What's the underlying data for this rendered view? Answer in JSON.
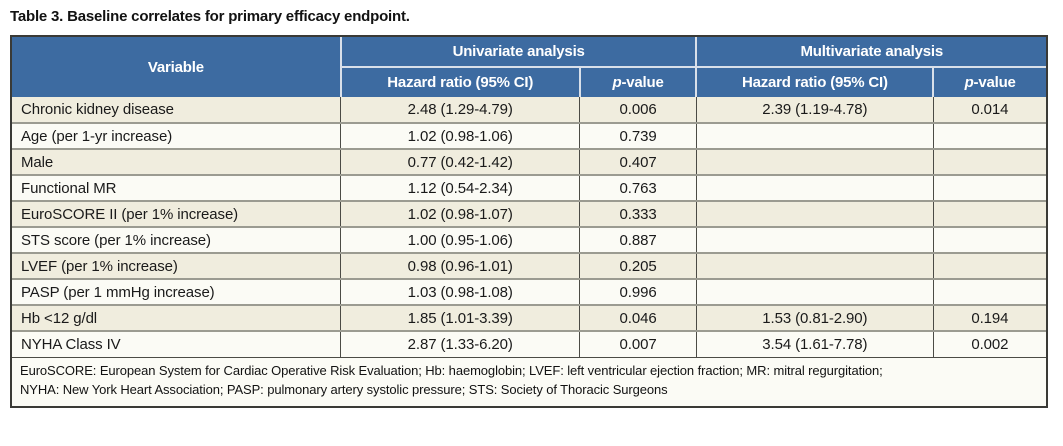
{
  "title": "Table 3. Baseline correlates for primary efficacy endpoint.",
  "table": {
    "columns": {
      "variable": "Variable",
      "univariate_group": "Univariate analysis",
      "multivariate_group": "Multivariate analysis",
      "uni_hazard_ratio": "Hazard ratio (95% CI)",
      "multi_hazard_ratio": "Hazard ratio (95% CI)",
      "p_value_italic": "p",
      "p_value_rest": "-value"
    },
    "rows": [
      {
        "variable": "Chronic kidney disease",
        "uni_hr": "2.48 (1.29-4.79)",
        "uni_p": "0.006",
        "multi_hr": "2.39 (1.19-4.78)",
        "multi_p": "0.014"
      },
      {
        "variable": "Age (per 1-yr increase)",
        "uni_hr": "1.02 (0.98-1.06)",
        "uni_p": "0.739",
        "multi_hr": "",
        "multi_p": ""
      },
      {
        "variable": "Male",
        "uni_hr": "0.77 (0.42-1.42)",
        "uni_p": "0.407",
        "multi_hr": "",
        "multi_p": ""
      },
      {
        "variable": "Functional MR",
        "uni_hr": "1.12 (0.54-2.34)",
        "uni_p": "0.763",
        "multi_hr": "",
        "multi_p": ""
      },
      {
        "variable": "EuroSCORE II (per 1% increase)",
        "uni_hr": "1.02 (0.98-1.07)",
        "uni_p": "0.333",
        "multi_hr": "",
        "multi_p": ""
      },
      {
        "variable": "STS score (per 1% increase)",
        "uni_hr": "1.00 (0.95-1.06)",
        "uni_p": "0.887",
        "multi_hr": "",
        "multi_p": ""
      },
      {
        "variable": "LVEF (per 1% increase)",
        "uni_hr": "0.98 (0.96-1.01)",
        "uni_p": "0.205",
        "multi_hr": "",
        "multi_p": ""
      },
      {
        "variable": "PASP (per 1 mmHg increase)",
        "uni_hr": "1.03 (0.98-1.08)",
        "uni_p": "0.996",
        "multi_hr": "",
        "multi_p": ""
      },
      {
        "variable": "Hb <12 g/dl",
        "uni_hr": "1.85 (1.01-3.39)",
        "uni_p": "0.046",
        "multi_hr": "1.53 (0.81-2.90)",
        "multi_p": "0.194"
      },
      {
        "variable": "NYHA Class IV",
        "uni_hr": "2.87 (1.33-6.20)",
        "uni_p": "0.007",
        "multi_hr": "3.54 (1.61-7.78)",
        "multi_p": "0.002"
      }
    ],
    "footnote_line1": "EuroSCORE: European System for Cardiac Operative Risk Evaluation; Hb: haemoglobin; LVEF: left ventricular ejection fraction; MR: mitral regurgitation;",
    "footnote_line2": "NYHA: New York Heart Association; PASP: pulmonary artery systolic pressure; STS: Society of Thoracic Surgeons"
  },
  "colors": {
    "header_bg": "#3d6ba1",
    "header_text": "#ffffff",
    "header_divider": "#d9e0ea",
    "row_cream": "#f0edde",
    "row_white": "#fbfbf5",
    "row_divider": "#9b9b91",
    "grid_dark": "#4b4b45",
    "outer_border": "#3a3a36"
  }
}
